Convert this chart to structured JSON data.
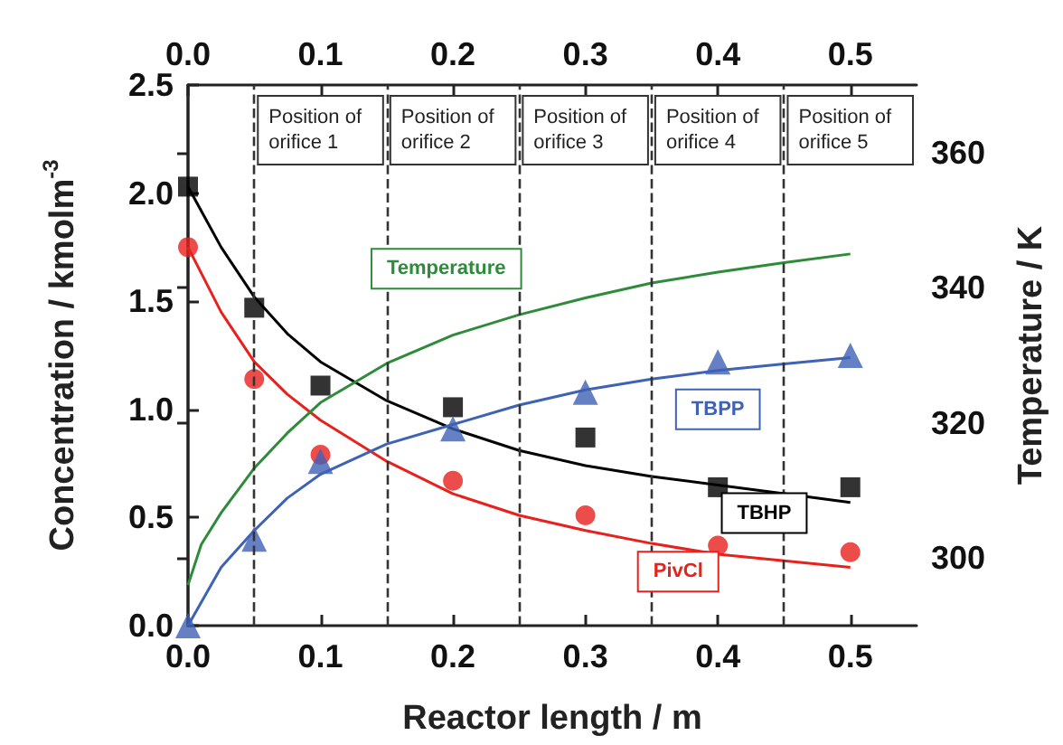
{
  "chart_data": {
    "type": "line",
    "xlabel": "Reactor length / m",
    "ylabel": "Concentration / kmolm$^{-3}$",
    "y2label": "Temperature / K",
    "xlim": [
      0,
      0.55
    ],
    "xticks": [
      {
        "value": 0,
        "label": "0.0"
      },
      0.1,
      0.2,
      0.3,
      0.4,
      0.5
    ],
    "x2lim": [
      0,
      0.55
    ],
    "x2ticks": [
      {
        "value": 0,
        "label": "0.0"
      },
      0.1,
      0.2,
      0.3,
      0.4,
      0.5
    ],
    "ylim": [
      0,
      2.5
    ],
    "yticks": [
      {
        "value": 0,
        "label": "0.0"
      },
      0.5,
      {
        "value": 1,
        "label": "1.0"
      },
      1.5,
      {
        "value": 2,
        "label": "2.0"
      },
      2.5
    ],
    "y2lim": [
      290,
      370
    ],
    "y2ticks": [
      300,
      320,
      340,
      360
    ],
    "grid": false,
    "legend": false,
    "series": [
      {
        "type": "scatter",
        "marker": "square",
        "color": "#000000",
        "x": [
          0,
          0.05,
          0.1,
          0.2,
          0.3,
          0.4,
          0.5
        ],
        "values": [
          2.03,
          1.47,
          1.11,
          1.01,
          0.87,
          0.64,
          0.64
        ]
      },
      {
        "type": "scatter",
        "marker": "circle",
        "color": "#e8211d",
        "x": [
          0,
          0.05,
          0.1,
          0.2,
          0.3,
          0.4,
          0.5
        ],
        "values": [
          1.75,
          1.14,
          0.79,
          0.67,
          0.51,
          0.37,
          0.34
        ]
      },
      {
        "type": "scatter",
        "marker": "triangle",
        "color": "#3e62b5",
        "x": [
          0,
          0.05,
          0.1,
          0.2,
          0.3,
          0.4,
          0.5
        ],
        "values": [
          0,
          0.4,
          0.76,
          0.91,
          1.08,
          1.22,
          1.25
        ]
      },
      {
        "name": "TBHP",
        "marker": "none",
        "line_style": "solid",
        "color": "#000000",
        "x": [
          0,
          0.025,
          0.05,
          0.075,
          0.1,
          0.15,
          0.2,
          0.25,
          0.3,
          0.35,
          0.4,
          0.45,
          0.5
        ],
        "values": [
          2.03,
          1.75,
          1.52,
          1.35,
          1.22,
          1.04,
          0.91,
          0.81,
          0.74,
          0.69,
          0.65,
          0.61,
          0.57
        ]
      },
      {
        "name": "PivCl",
        "marker": "none",
        "line_style": "solid",
        "color": "#e8211d",
        "x": [
          0,
          0.025,
          0.05,
          0.075,
          0.1,
          0.15,
          0.2,
          0.25,
          0.3,
          0.35,
          0.4,
          0.45,
          0.5
        ],
        "values": [
          1.75,
          1.45,
          1.22,
          1.07,
          0.95,
          0.76,
          0.61,
          0.51,
          0.44,
          0.38,
          0.33,
          0.3,
          0.27
        ]
      },
      {
        "name": "TBPP",
        "marker": "none",
        "line_style": "solid",
        "color": "#3e62b5",
        "x": [
          0,
          0.025,
          0.05,
          0.075,
          0.1,
          0.15,
          0.2,
          0.25,
          0.3,
          0.35,
          0.4,
          0.45,
          0.5
        ],
        "values": [
          0,
          0.27,
          0.44,
          0.59,
          0.7,
          0.84,
          0.93,
          1.02,
          1.09,
          1.14,
          1.18,
          1.21,
          1.24
        ]
      },
      {
        "name": "Temperature",
        "axis": "y2",
        "marker": "none",
        "line_style": "solid",
        "color": "#2e8b3a",
        "x": [
          0,
          0.01,
          0.025,
          0.05,
          0.075,
          0.1,
          0.15,
          0.2,
          0.25,
          0.3,
          0.35,
          0.4,
          0.45,
          0.5
        ],
        "values": [
          296,
          302,
          306.7,
          313.3,
          318.5,
          323,
          328.8,
          333,
          336,
          338.5,
          340.7,
          342.3,
          343.7,
          345
        ]
      }
    ],
    "ref_lines": [
      {
        "axis": "x",
        "value": 0.05,
        "line_style": "dashed",
        "color": "#333333"
      },
      {
        "axis": "x",
        "value": 0.15,
        "line_style": "dashed",
        "color": "#333333"
      },
      {
        "axis": "x",
        "value": 0.25,
        "line_style": "dashed",
        "color": "#333333"
      },
      {
        "axis": "x",
        "value": 0.35,
        "line_style": "dashed",
        "color": "#333333"
      },
      {
        "axis": "x",
        "value": 0.45,
        "line_style": "dashed",
        "color": "#333333"
      }
    ],
    "annotations": [
      "Position of orifice 1",
      "Position of orifice 2",
      "Position of orifice 3",
      "Position of orifice 4",
      "Position of orifice 5"
    ]
  }
}
